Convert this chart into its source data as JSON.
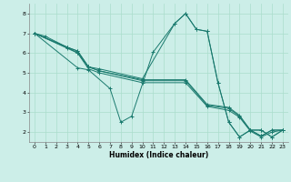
{
  "xlabel": "Humidex (Indice chaleur)",
  "bg_color": "#cceee8",
  "grid_color": "#aaddcc",
  "line_color": "#1a7a6e",
  "xlim": [
    -0.5,
    23.5
  ],
  "ylim": [
    1.5,
    8.5
  ],
  "xticks": [
    0,
    1,
    2,
    3,
    4,
    5,
    6,
    7,
    8,
    9,
    10,
    11,
    12,
    13,
    14,
    15,
    16,
    17,
    18,
    19,
    20,
    21,
    22,
    23
  ],
  "yticks": [
    2,
    3,
    4,
    5,
    6,
    7,
    8
  ],
  "lines": [
    {
      "x": [
        0,
        1,
        3,
        4,
        5,
        6,
        10,
        13,
        14,
        15,
        16,
        17,
        18,
        19,
        20,
        21,
        22,
        23
      ],
      "y": [
        7.0,
        6.85,
        6.3,
        6.1,
        5.3,
        5.2,
        4.7,
        7.5,
        8.0,
        7.2,
        7.1,
        4.5,
        2.5,
        1.75,
        2.1,
        2.1,
        1.75,
        2.1
      ]
    },
    {
      "x": [
        0,
        3,
        4,
        5,
        6,
        10,
        14,
        16,
        18,
        19,
        20,
        21,
        22,
        23
      ],
      "y": [
        7.0,
        6.3,
        6.1,
        5.3,
        5.1,
        4.65,
        4.65,
        3.4,
        3.25,
        2.85,
        2.1,
        1.8,
        2.1,
        2.1
      ]
    },
    {
      "x": [
        0,
        3,
        4,
        5,
        6,
        10,
        14,
        16,
        18,
        19,
        20,
        21,
        22,
        23
      ],
      "y": [
        7.0,
        6.3,
        6.0,
        5.3,
        5.1,
        4.6,
        4.6,
        3.35,
        3.2,
        2.8,
        2.1,
        1.8,
        2.1,
        2.1
      ]
    },
    {
      "x": [
        0,
        3,
        4,
        5,
        6,
        10,
        14,
        16,
        18,
        19,
        20,
        21,
        22,
        23
      ],
      "y": [
        7.0,
        6.25,
        6.0,
        5.2,
        5.0,
        4.5,
        4.5,
        3.3,
        3.1,
        2.75,
        2.05,
        1.75,
        2.0,
        2.1
      ]
    },
    {
      "x": [
        0,
        4,
        5,
        7,
        8,
        9,
        11,
        13,
        14,
        15,
        16,
        17,
        18,
        19,
        20,
        21,
        22,
        23
      ],
      "y": [
        7.0,
        5.25,
        5.15,
        4.2,
        2.5,
        2.8,
        6.05,
        7.5,
        8.0,
        7.2,
        7.1,
        4.5,
        2.5,
        1.75,
        2.1,
        2.1,
        1.75,
        2.1
      ]
    }
  ]
}
